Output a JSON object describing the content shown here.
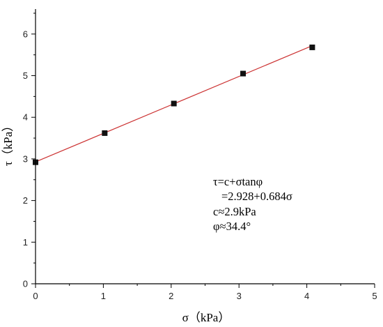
{
  "chart_data": {
    "type": "scatter",
    "xlabel": "σ（kPa）",
    "ylabel": "τ（kPa）",
    "xlim": [
      0,
      5
    ],
    "ylim": [
      0,
      6.6
    ],
    "xticks": [
      "0",
      "1",
      "2",
      "3",
      "4",
      "5"
    ],
    "yticks": [
      "0",
      "1",
      "2",
      "3",
      "4",
      "5",
      "6"
    ],
    "grid": false,
    "points": {
      "x": [
        0,
        1.02,
        2.04,
        3.06,
        4.08
      ],
      "y": [
        2.92,
        3.62,
        4.33,
        5.05,
        5.68
      ]
    },
    "fit_line": {
      "x": [
        0,
        4.08
      ],
      "y": [
        2.928,
        5.72
      ]
    },
    "annotation": [
      "τ=c+σtanφ",
      "=2.928+0.684σ",
      "c≈2.9kPa",
      "φ≈34.4°"
    ],
    "marker_color": "#111111",
    "line_color": "#cc3333"
  }
}
